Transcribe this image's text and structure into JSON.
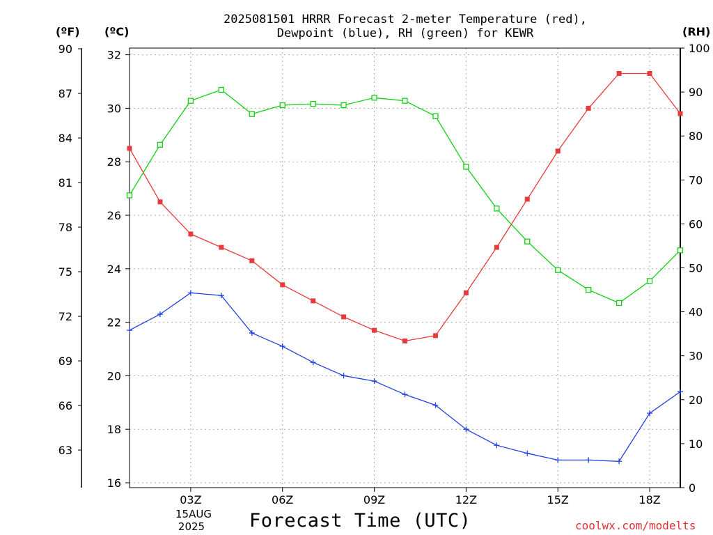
{
  "title_line1": "2025081501 HRRR Forecast 2-meter Temperature (red),",
  "title_line2": "Dewpoint (blue), RH (green) for KEWR",
  "unit_f": "(ºF)",
  "unit_c": "(ºC)",
  "unit_rh": "(RH)",
  "x_title": "Forecast Time (UTC)",
  "date_day": "15AUG",
  "date_year": "2025",
  "credit": "coolwx.com/modelts",
  "colors": {
    "temperature": "#e83a3a",
    "dewpoint": "#2040e0",
    "rh": "#10d010",
    "grid": "#aaaaaa"
  },
  "chart_data": {
    "type": "line",
    "x": [
      1,
      2,
      3,
      4,
      5,
      6,
      7,
      8,
      9,
      10,
      11,
      12,
      13,
      14,
      15,
      16,
      17,
      18,
      19
    ],
    "x_ticks": [
      {
        "value": 3,
        "label": "03Z"
      },
      {
        "value": 6,
        "label": "06Z"
      },
      {
        "value": 9,
        "label": "09Z"
      },
      {
        "value": 12,
        "label": "12Z"
      },
      {
        "value": 15,
        "label": "15Z"
      },
      {
        "value": 18,
        "label": "18Z"
      }
    ],
    "xlim": [
      1,
      19
    ],
    "ylim_c": [
      16,
      32
    ],
    "yticks_c": [
      "16",
      "18",
      "20",
      "22",
      "24",
      "26",
      "28",
      "30",
      "32"
    ],
    "yticks_f": [
      "63",
      "66",
      "69",
      "72",
      "75",
      "78",
      "81",
      "84",
      "87",
      "90"
    ],
    "ylim_rh": [
      0,
      100
    ],
    "yticks_rh": [
      "0",
      "10",
      "20",
      "30",
      "40",
      "50",
      "60",
      "70",
      "80",
      "90",
      "100"
    ],
    "grid": true,
    "series": [
      {
        "name": "Temperature",
        "key": "temperature",
        "axis": "c",
        "marker": "filled-square",
        "values": [
          28.5,
          26.5,
          25.3,
          24.8,
          24.3,
          23.4,
          22.8,
          22.2,
          21.7,
          21.3,
          21.5,
          23.1,
          24.8,
          26.6,
          28.4,
          30.0,
          31.3,
          31.3,
          29.8
        ]
      },
      {
        "name": "Dewpoint",
        "key": "dewpoint",
        "axis": "c",
        "marker": "plus",
        "values": [
          21.7,
          22.3,
          23.1,
          23.0,
          21.6,
          21.1,
          20.5,
          20.0,
          19.8,
          19.3,
          18.9,
          18.0,
          17.4,
          17.1,
          16.85,
          16.85,
          16.8,
          18.6,
          19.4
        ]
      },
      {
        "name": "RH",
        "key": "rh",
        "axis": "rh",
        "marker": "open-square",
        "values": [
          66.5,
          78,
          88,
          90.5,
          85,
          87,
          87.3,
          87,
          88.7,
          88,
          84.5,
          73,
          63.5,
          56,
          49.5,
          45,
          42,
          47,
          54
        ]
      }
    ]
  }
}
